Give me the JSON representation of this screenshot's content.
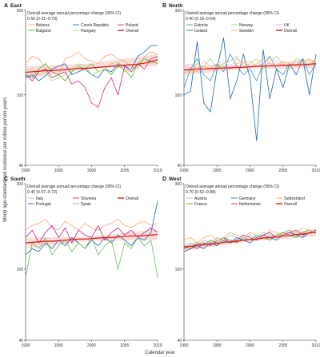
{
  "figure": {
    "y_axis_label": "World age-standardised incidence per million person-years",
    "x_axis_label": "Calendar year"
  },
  "colors": {
    "Belarus": "#f4a582",
    "Bulgaria": "#4dac26",
    "Czech Republic": "#2166ac",
    "Hungary": "#a6d96a",
    "Poland": "#d6218a",
    "Overall": "#e41a1c",
    "Estonia": "#4393c3",
    "Iceland": "#2166ac",
    "Norway": "#a6d96a",
    "Sweden": "#fdae61",
    "UK": "#f1b6da",
    "Italy": "#f4a582",
    "Portugal": "#2166ac",
    "Slovenia": "#c51b7d",
    "Spain": "#66bd63",
    "Austria": "#92c5de",
    "France": "#4dac26",
    "Germany": "#2166ac",
    "Netherlands": "#c51b7d",
    "Switzerland": "#fdae61",
    "ci_band": "#f7b6b0",
    "axis": "#333333",
    "trend": "#e41a1c"
  },
  "chart_data": [
    {
      "type": "line",
      "panel_letter": "A",
      "title": "East",
      "stat_label": "Overall average annual percentage change (95% CI)",
      "stat_value": "0·50 (0·21–0·79)",
      "x": [
        1990,
        1991,
        1992,
        1993,
        1994,
        1995,
        1996,
        1997,
        1998,
        1999,
        2000,
        2001,
        2002,
        2003,
        2004,
        2005,
        2006,
        2007,
        2008,
        2009,
        2010
      ],
      "xlim": [
        1990,
        2010
      ],
      "ylim": [
        40,
        300
      ],
      "yscale": "log",
      "xticks": [
        1990,
        1995,
        2000,
        2005,
        2010
      ],
      "yticks": [
        40,
        100,
        300
      ],
      "xticklabels": [
        "1990",
        "1995",
        "2000",
        "2005",
        "2010"
      ],
      "yticklabels": [
        "40",
        "100",
        "300"
      ],
      "legend": [
        "Belarus",
        "Czech Republic",
        "Poland",
        "Bulgaria",
        "Hungary",
        "Overall"
      ],
      "series": [
        {
          "name": "Belarus",
          "values": [
            150,
            165,
            160,
            140,
            135,
            130,
            160,
            165,
            175,
            160,
            155,
            150,
            165,
            170,
            160,
            155,
            145,
            140,
            165,
            175,
            170
          ]
        },
        {
          "name": "Bulgaria",
          "values": [
            130,
            125,
            140,
            150,
            135,
            130,
            120,
            135,
            145,
            140,
            150,
            135,
            140,
            130,
            145,
            140,
            125,
            150,
            160,
            155,
            150
          ]
        },
        {
          "name": "Czech Republic",
          "values": [
            125,
            130,
            120,
            128,
            140,
            145,
            150,
            130,
            135,
            140,
            130,
            125,
            140,
            135,
            150,
            145,
            140,
            165,
            175,
            190,
            190
          ]
        },
        {
          "name": "Hungary",
          "values": [
            135,
            140,
            130,
            135,
            120,
            125,
            130,
            140,
            150,
            145,
            130,
            135,
            140,
            150,
            155,
            135,
            140,
            145,
            160,
            150,
            155
          ]
        },
        {
          "name": "Poland",
          "values": [
            130,
            120,
            135,
            140,
            125,
            130,
            135,
            115,
            120,
            110,
            90,
            85,
            110,
            125,
            100,
            145,
            135,
            150,
            140,
            160,
            165
          ]
        },
        {
          "name": "Overall",
          "values": [
            134,
            135,
            136,
            137,
            137,
            138,
            139,
            140,
            141,
            141,
            142,
            143,
            144,
            145,
            146,
            147,
            148,
            149,
            151,
            154,
            158
          ]
        }
      ],
      "trend": [
        134,
        158
      ],
      "ci_width": 0.08
    },
    {
      "type": "line",
      "panel_letter": "B",
      "title": "North",
      "stat_label": "Overall average annual percentage change (95% CI)",
      "stat_value": "0·40 (0·16–0·64)",
      "x": [
        1990,
        1991,
        1992,
        1993,
        1994,
        1995,
        1996,
        1997,
        1998,
        1999,
        2000,
        2001,
        2002,
        2003,
        2004,
        2005,
        2006,
        2007,
        2008,
        2009,
        2010
      ],
      "xlim": [
        1990,
        2010
      ],
      "ylim": [
        40,
        300
      ],
      "yscale": "log",
      "xticks": [
        1990,
        1995,
        2000,
        2005,
        2010
      ],
      "yticks": [
        40,
        100,
        300
      ],
      "xticklabels": [
        "1990",
        "1995",
        "2000",
        "2005",
        "2010"
      ],
      "yticklabels": [
        "40",
        "100",
        "300"
      ],
      "legend": [
        "Estonia",
        "Norway",
        "UK",
        "Iceland",
        "Sweden",
        "Overall"
      ],
      "series": [
        {
          "name": "Estonia",
          "values": [
            110,
            140,
            160,
            130,
            120,
            150,
            135,
            170,
            145,
            130,
            140,
            120,
            150,
            165,
            140,
            130,
            150,
            145,
            160,
            130,
            150
          ]
        },
        {
          "name": "Iceland",
          "values": [
            100,
            105,
            200,
            90,
            80,
            140,
            210,
            95,
            120,
            170,
            125,
            55,
            180,
            95,
            140,
            110,
            150,
            130,
            160,
            100,
            170
          ]
        },
        {
          "name": "Norway",
          "values": [
            140,
            135,
            150,
            145,
            160,
            140,
            150,
            155,
            165,
            145,
            150,
            160,
            140,
            155,
            165,
            150,
            140,
            160,
            155,
            145,
            160
          ]
        },
        {
          "name": "Sweden",
          "values": [
            130,
            140,
            135,
            145,
            140,
            150,
            145,
            140,
            150,
            155,
            145,
            150,
            160,
            150,
            145,
            155,
            150,
            145,
            155,
            160,
            150
          ]
        },
        {
          "name": "UK",
          "values": [
            145,
            150,
            140,
            155,
            145,
            150,
            155,
            145,
            160,
            150,
            155,
            145,
            150,
            160,
            155,
            145,
            150,
            155,
            150,
            145,
            155
          ]
        },
        {
          "name": "Overall",
          "values": [
            138,
            139,
            140,
            140,
            141,
            141,
            142,
            142,
            143,
            143,
            144,
            145,
            145,
            146,
            146,
            147,
            147,
            148,
            148,
            149,
            150
          ]
        }
      ],
      "trend": [
        138,
        150
      ],
      "ci_width": 0.06
    },
    {
      "type": "line",
      "panel_letter": "C",
      "title": "South",
      "stat_label": "Overall average annual percentage change (95% CI)",
      "stat_value": "0·40 (0·07–0·72)",
      "x": [
        1990,
        1991,
        1992,
        1993,
        1994,
        1995,
        1996,
        1997,
        1998,
        1999,
        2000,
        2001,
        2002,
        2003,
        2004,
        2005,
        2006,
        2007,
        2008,
        2009,
        2010
      ],
      "xlim": [
        1990,
        2010
      ],
      "ylim": [
        40,
        300
      ],
      "yscale": "log",
      "xticks": [
        1990,
        1995,
        2000,
        2005,
        2010
      ],
      "yticks": [
        40,
        100,
        300
      ],
      "xticklabels": [
        "1990",
        "1995",
        "2000",
        "2005",
        "2010"
      ],
      "yticklabels": [
        "40",
        "100",
        "300"
      ],
      "legend": [
        "Italy",
        "Slovenia",
        "Overall",
        "Portugal",
        "Spain"
      ],
      "series": [
        {
          "name": "Italy",
          "values": [
            165,
            175,
            180,
            190,
            170,
            165,
            185,
            175,
            165,
            180,
            170,
            165,
            175,
            180,
            190,
            175,
            170,
            180,
            185,
            175,
            180
          ]
        },
        {
          "name": "Portugal",
          "values": [
            120,
            130,
            125,
            140,
            130,
            145,
            135,
            150,
            140,
            130,
            145,
            135,
            150,
            140,
            155,
            145,
            135,
            150,
            145,
            160,
            240
          ]
        },
        {
          "name": "Slovenia",
          "values": [
            150,
            165,
            140,
            160,
            175,
            150,
            170,
            140,
            165,
            155,
            150,
            175,
            145,
            160,
            170,
            155,
            165,
            150,
            160,
            170,
            160
          ]
        },
        {
          "name": "Spain",
          "values": [
            90,
            140,
            130,
            150,
            120,
            135,
            145,
            125,
            140,
            130,
            150,
            120,
            135,
            145,
            100,
            140,
            130,
            150,
            135,
            145,
            90
          ]
        },
        {
          "name": "Overall",
          "values": [
            140,
            141,
            142,
            143,
            143,
            144,
            145,
            146,
            147,
            147,
            148,
            149,
            150,
            150,
            151,
            152,
            153,
            153,
            154,
            155,
            156
          ]
        }
      ],
      "trend": [
        140,
        156
      ],
      "ci_width": 0.07
    },
    {
      "type": "line",
      "panel_letter": "D",
      "title": "West",
      "stat_label": "Overall average annual percentage change (95% CI)",
      "stat_value": "0·70 (0·52–0·88)",
      "x": [
        1990,
        1991,
        1992,
        1993,
        1994,
        1995,
        1996,
        1997,
        1998,
        1999,
        2000,
        2001,
        2002,
        2003,
        2004,
        2005,
        2006,
        2007,
        2008,
        2009,
        2010
      ],
      "xlim": [
        1990,
        2010
      ],
      "ylim": [
        40,
        300
      ],
      "yscale": "log",
      "xticks": [
        1990,
        1995,
        2000,
        2005,
        2010
      ],
      "yticks": [
        40,
        100,
        300
      ],
      "xticklabels": [
        "1990",
        "1995",
        "2000",
        "2005",
        "2010"
      ],
      "yticklabels": [
        "40",
        "100",
        "300"
      ],
      "legend": [
        "Austria",
        "Germany",
        "Switzerland",
        "France",
        "Netherlands",
        "Overall"
      ],
      "series": [
        {
          "name": "Austria",
          "values": [
            130,
            140,
            135,
            145,
            140,
            150,
            145,
            155,
            150,
            145,
            155,
            150,
            160,
            155,
            150,
            160,
            165,
            155,
            160,
            165,
            160
          ]
        },
        {
          "name": "France",
          "values": [
            135,
            130,
            140,
            135,
            145,
            140,
            150,
            145,
            140,
            150,
            145,
            155,
            150,
            145,
            155,
            160,
            155,
            150,
            160,
            165,
            160
          ]
        },
        {
          "name": "Germany",
          "values": [
            125,
            130,
            135,
            130,
            140,
            135,
            145,
            140,
            150,
            145,
            140,
            150,
            155,
            150,
            145,
            155,
            160,
            155,
            150,
            160,
            165
          ]
        },
        {
          "name": "Netherlands",
          "values": [
            130,
            135,
            130,
            140,
            135,
            145,
            150,
            140,
            145,
            155,
            150,
            145,
            155,
            160,
            150,
            155,
            160,
            165,
            155,
            160,
            165
          ]
        },
        {
          "name": "Switzerland",
          "values": [
            145,
            150,
            140,
            150,
            155,
            145,
            150,
            160,
            155,
            150,
            160,
            155,
            150,
            165,
            160,
            155,
            165,
            160,
            170,
            165,
            160
          ]
        },
        {
          "name": "Overall",
          "values": [
            133,
            134,
            136,
            137,
            138,
            139,
            141,
            142,
            143,
            145,
            146,
            147,
            149,
            150,
            151,
            153,
            154,
            156,
            157,
            159,
            160
          ]
        }
      ],
      "trend": [
        133,
        160
      ],
      "ci_width": 0.05
    }
  ]
}
